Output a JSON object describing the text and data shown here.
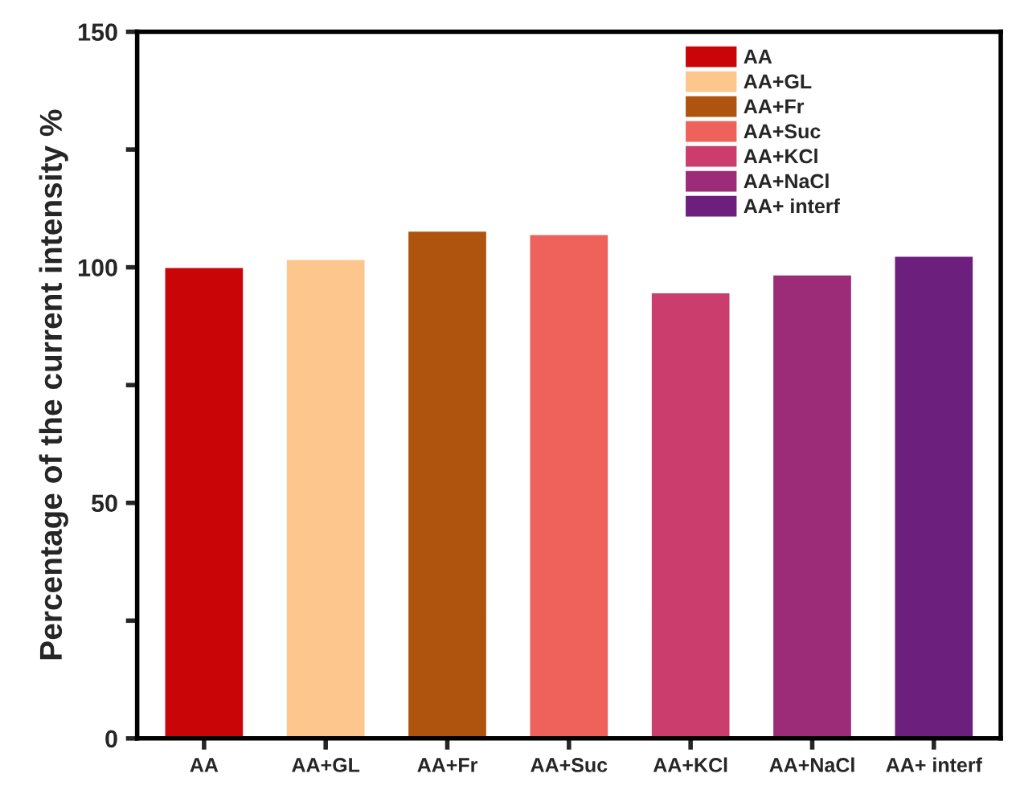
{
  "chart_data": {
    "type": "bar",
    "ylabel": "Percentage of the current intensity %",
    "categories": [
      "AA",
      "AA+GL",
      "AA+Fr",
      "AA+Suc",
      "AA+KCl",
      "AA+NaCl",
      "AA+ interf"
    ],
    "series": [
      {
        "name": "AA",
        "color": "#c90508",
        "values": [
          100,
          null,
          null,
          null,
          null,
          null,
          null
        ]
      },
      {
        "name": "AA+GL",
        "color": "#fcc68c",
        "values": [
          null,
          101.7,
          null,
          null,
          null,
          null,
          null
        ]
      },
      {
        "name": "AA+Fr",
        "color": "#ae540f",
        "values": [
          null,
          null,
          107.7,
          null,
          null,
          null,
          null
        ]
      },
      {
        "name": "AA+Suc",
        "color": "#ef625c",
        "values": [
          null,
          null,
          null,
          107.0,
          null,
          null,
          null
        ]
      },
      {
        "name": "AA+KCl",
        "color": "#cb3d6c",
        "values": [
          null,
          null,
          null,
          null,
          94.6,
          null,
          null
        ]
      },
      {
        "name": "AA+NaCl",
        "color": "#9c2b78",
        "values": [
          null,
          null,
          null,
          null,
          null,
          98.4,
          null
        ]
      },
      {
        "name": "AA+ interf",
        "color": "#6d1f7e",
        "values": [
          null,
          null,
          null,
          null,
          null,
          null,
          102.4
        ]
      }
    ],
    "ylim": [
      0,
      150
    ],
    "yticks": [
      0,
      {
        "value": 25,
        "label": null
      },
      50,
      {
        "value": 75,
        "label": null
      },
      100,
      {
        "value": 125,
        "label": null
      },
      150
    ],
    "grid": false,
    "legend": "top right"
  }
}
